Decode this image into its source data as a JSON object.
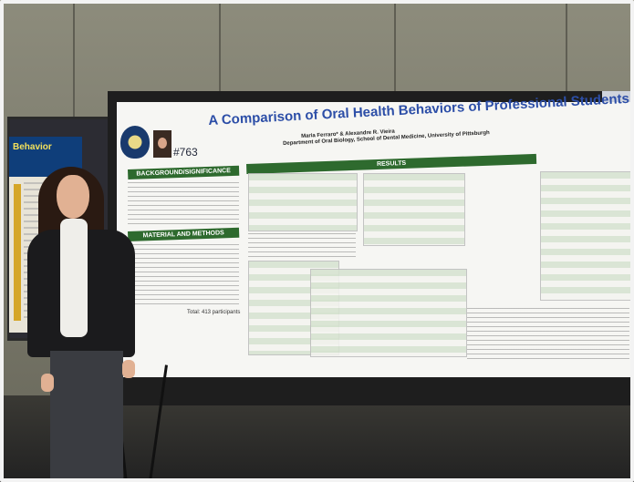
{
  "left_poster": {
    "heading": "Behavior"
  },
  "poster": {
    "number": "#763",
    "title": "A Comparison of Oral Health Behaviors of Professional Students",
    "authors": "Maria Ferraro* & Alexandre R. Vieira",
    "department": "Department of Oral Biology, School of Dental Medicine, University of Pittsburgh",
    "sections": {
      "background": "BACKGROUND/SIGNIFICANCE",
      "materials": "MATERIAL AND METHODS",
      "results": "RESULTS"
    },
    "total_note": "Total: 413 participants"
  }
}
